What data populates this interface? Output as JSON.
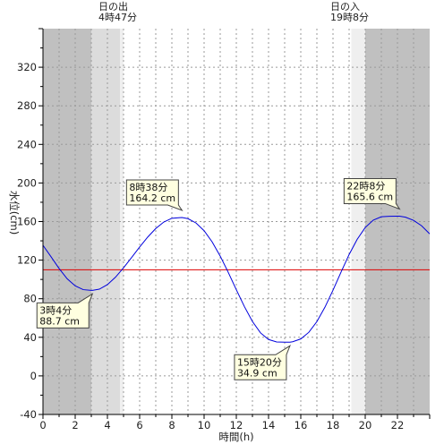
{
  "chart_data": {
    "type": "line",
    "xlabel": "時間(h)",
    "ylabel": "水位(cm)",
    "xlim": [
      0,
      24
    ],
    "ylim": [
      -40,
      360
    ],
    "x_ticks": [
      0,
      2,
      4,
      6,
      8,
      10,
      12,
      14,
      16,
      18,
      20,
      22
    ],
    "y_ticks": [
      -40,
      0,
      40,
      80,
      120,
      160,
      200,
      240,
      280,
      320
    ],
    "reference_line": 110,
    "grid": true,
    "colors": {
      "line": "#0000dd",
      "reference": "#dd0000",
      "night": "#c0c0c0",
      "twilight": "#dcdcdc",
      "dawn": "#efefef",
      "callout": "#ffffe0"
    },
    "sun": {
      "sunrise_label": "日の出",
      "sunrise_time": "4時47分",
      "sunrise_hour": 4.783,
      "sunset_label": "日の入",
      "sunset_time": "19時8分",
      "sunset_hour": 19.133,
      "dark_until": 3.0,
      "dawn_until": 4.783,
      "light_until": 5.0,
      "dusk_from": 19.133,
      "dark_from": 20.0
    },
    "series": [
      {
        "x": [
          0,
          0.5,
          1,
          1.5,
          2,
          2.5,
          3,
          3.07,
          3.5,
          4,
          4.5,
          5,
          5.5,
          6,
          6.5,
          7,
          7.5,
          8,
          8.5,
          8.63,
          9,
          9.5,
          10,
          10.5,
          11,
          11.5,
          12,
          12.5,
          13,
          13.5,
          14,
          14.5,
          15,
          15.33,
          15.5,
          16,
          16.5,
          17,
          17.5,
          18,
          18.5,
          19,
          19.5,
          20,
          20.5,
          21,
          21.5,
          22,
          22.13,
          22.5,
          23,
          23.5,
          24
        ],
        "y": [
          135.4,
          123.5,
          111.3,
          100.7,
          93.3,
          89.4,
          88.7,
          88.7,
          89.9,
          94.6,
          102.3,
          112.0,
          122.7,
          133.6,
          143.9,
          152.8,
          159.5,
          163.4,
          164.1,
          164.2,
          163.0,
          158.5,
          150.5,
          138.9,
          124.2,
          107.3,
          89.3,
          71.9,
          56.4,
          44.6,
          37.7,
          35.2,
          34.9,
          34.9,
          35.4,
          38.3,
          45.2,
          56.3,
          71.2,
          88.8,
          107.6,
          125.8,
          141.6,
          153.8,
          161.5,
          165.0,
          165.5,
          165.6,
          165.6,
          164.5,
          161.2,
          155.6,
          147.2
        ]
      }
    ],
    "annotations": [
      {
        "x": 3.07,
        "y": 88.7,
        "time": "3時4分",
        "value": "88.7 cm",
        "position": "bottom-left"
      },
      {
        "x": 8.63,
        "y": 164.2,
        "time": "8時38分",
        "value": "164.2 cm",
        "position": "top-left"
      },
      {
        "x": 15.33,
        "y": 34.9,
        "time": "15時20分",
        "value": "34.9 cm",
        "position": "bottom-left"
      },
      {
        "x": 22.13,
        "y": 165.6,
        "time": "22時8分",
        "value": "165.6 cm",
        "position": "top-left"
      }
    ]
  }
}
